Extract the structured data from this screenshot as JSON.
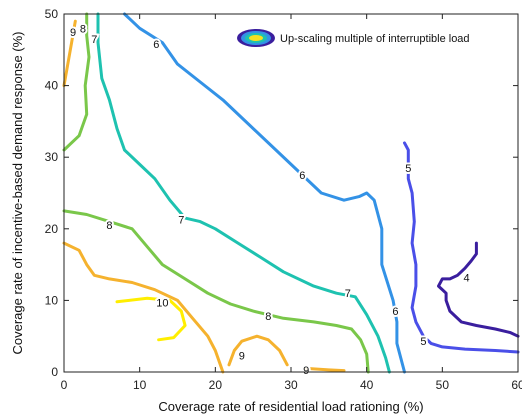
{
  "chart_data": {
    "type": "contour",
    "title": "",
    "xlabel": "Coverage rate of residential load rationing (%)",
    "ylabel": "Coverage rate of incentive-based demand response (%)",
    "xlim": [
      0,
      60
    ],
    "ylim": [
      0,
      50
    ],
    "xticks": [
      "0",
      "10",
      "20",
      "30",
      "40",
      "50",
      "60"
    ],
    "yticks": [
      "0",
      "10",
      "20",
      "30",
      "40",
      "50"
    ],
    "grid": false,
    "legend": {
      "position": "top-right",
      "label": "Up-scaling multiple of interruptible load"
    },
    "levels": [
      {
        "level": 4,
        "label": "4",
        "color": "#3a1e9e",
        "paths": [
          [
            [
              54.5,
              18
            ],
            [
              54.5,
              16.5
            ],
            [
              53.8,
              15.5
            ],
            [
              53,
              14.5
            ],
            [
              52,
              13.5
            ],
            [
              51,
              13
            ],
            [
              50,
              13
            ],
            [
              49.5,
              12
            ],
            [
              50.5,
              11
            ],
            [
              50.5,
              10
            ],
            [
              51,
              8.5
            ],
            [
              52.5,
              7
            ],
            [
              54.5,
              6.5
            ],
            [
              57,
              6
            ],
            [
              59,
              5.5
            ],
            [
              60,
              5
            ]
          ]
        ],
        "labels": [
          [
            53.2,
            13.2
          ]
        ]
      },
      {
        "level": 5,
        "label": "5",
        "color": "#4a4fe8",
        "paths": [
          [
            [
              45,
              32
            ],
            [
              45.5,
              31
            ],
            [
              45.5,
              27
            ],
            [
              46,
              25
            ],
            [
              46.3,
              21
            ],
            [
              46,
              18
            ],
            [
              46.5,
              15
            ],
            [
              46.5,
              12
            ],
            [
              46,
              9
            ],
            [
              46.5,
              7
            ],
            [
              47.5,
              5
            ],
            [
              48.5,
              4
            ],
            [
              50,
              3.5
            ],
            [
              53,
              3.2
            ],
            [
              57,
              3
            ],
            [
              60,
              2.8
            ]
          ]
        ],
        "labels": [
          [
            45.5,
            28.5
          ],
          [
            47.5,
            4.3
          ]
        ]
      },
      {
        "level": 6,
        "label": "6",
        "color": "#3392e6",
        "paths": [
          [
            [
              8,
              50
            ],
            [
              10,
              48
            ],
            [
              13,
              46
            ],
            [
              15,
              43
            ],
            [
              18,
              40.5
            ],
            [
              21,
              38
            ],
            [
              24,
              35
            ],
            [
              28,
              31
            ],
            [
              31,
              28
            ],
            [
              34,
              25
            ],
            [
              37,
              24
            ],
            [
              39,
              24.5
            ],
            [
              40,
              25
            ],
            [
              41,
              24
            ],
            [
              42,
              20
            ],
            [
              42,
              15
            ],
            [
              43.5,
              10
            ],
            [
              44,
              7
            ],
            [
              44,
              4
            ],
            [
              45,
              0
            ]
          ]
        ],
        "labels": [
          [
            12.2,
            45.8
          ],
          [
            31.5,
            27.5
          ],
          [
            43.8,
            8.5
          ]
        ]
      },
      {
        "level": 7,
        "label": "7",
        "color": "#1ec2b0",
        "paths": [
          [
            [
              4.5,
              50
            ],
            [
              4.5,
              46
            ],
            [
              5,
              41
            ],
            [
              6,
              38
            ],
            [
              7,
              34
            ],
            [
              8,
              31
            ],
            [
              10,
              29
            ],
            [
              12,
              27
            ],
            [
              14,
              24
            ],
            [
              16,
              21.5
            ],
            [
              18,
              21
            ],
            [
              20,
              20
            ],
            [
              23,
              18
            ],
            [
              26,
              16
            ],
            [
              29,
              14
            ],
            [
              33,
              12
            ],
            [
              36,
              11
            ],
            [
              38.5,
              10.5
            ],
            [
              40,
              8
            ],
            [
              41.5,
              5
            ],
            [
              42.5,
              2
            ],
            [
              43,
              0
            ]
          ]
        ],
        "labels": [
          [
            4,
            46.5
          ],
          [
            15.5,
            21.3
          ],
          [
            37.5,
            11
          ]
        ]
      },
      {
        "level": 8,
        "label": "8",
        "color": "#7ac74a",
        "paths": [
          [
            [
              0,
              31
            ],
            [
              2,
              33
            ],
            [
              3,
              36
            ],
            [
              2.8,
              40
            ],
            [
              3.3,
              44
            ],
            [
              3,
              47
            ],
            [
              3,
              50
            ]
          ],
          [
            [
              0,
              22.5
            ],
            [
              3,
              22
            ],
            [
              6,
              21
            ],
            [
              9,
              20
            ],
            [
              11,
              17.5
            ],
            [
              13,
              15
            ],
            [
              16,
              13
            ],
            [
              19,
              11
            ],
            [
              22,
              9.5
            ],
            [
              25,
              8.5
            ],
            [
              29,
              7.5
            ],
            [
              33,
              7
            ],
            [
              36,
              6.5
            ],
            [
              38,
              6
            ],
            [
              39.2,
              4.5
            ],
            [
              40,
              2.5
            ],
            [
              40.2,
              0
            ]
          ]
        ],
        "labels": [
          [
            2.5,
            48
          ],
          [
            6,
            20.5
          ],
          [
            27,
            7.8
          ]
        ]
      },
      {
        "level": 9,
        "label": "9",
        "color": "#f5b22e",
        "paths": [
          [
            [
              0,
              18
            ],
            [
              2,
              17
            ],
            [
              3,
              15
            ],
            [
              4,
              13.5
            ],
            [
              6,
              13
            ],
            [
              9,
              12.5
            ],
            [
              12,
              11.5
            ],
            [
              15,
              10
            ],
            [
              17,
              7.5
            ],
            [
              19,
              5
            ],
            [
              20,
              3
            ],
            [
              21,
              0
            ]
          ],
          [
            [
              0,
              40
            ],
            [
              0.5,
              43
            ],
            [
              1,
              46
            ],
            [
              1.5,
              49
            ]
          ],
          [
            [
              21.8,
              1
            ],
            [
              22.5,
              3
            ],
            [
              23.5,
              4.3
            ],
            [
              25.5,
              5
            ],
            [
              27,
              4.5
            ],
            [
              28.5,
              3
            ],
            [
              29.5,
              1
            ]
          ],
          [
            [
              32,
              0.5
            ],
            [
              35,
              0.3
            ],
            [
              37,
              0.2
            ]
          ]
        ],
        "labels": [
          [
            1.2,
            47.5
          ],
          [
            23.5,
            2.3
          ],
          [
            32,
            0.3
          ]
        ]
      },
      {
        "level": 10,
        "label": "10",
        "color": "#ffee00",
        "paths": [
          [
            [
              7,
              9.8
            ],
            [
              11,
              10.3
            ],
            [
              14,
              10
            ],
            [
              15.5,
              8.5
            ],
            [
              16,
              6.5
            ],
            [
              14.5,
              4.8
            ],
            [
              12.5,
              4.5
            ]
          ]
        ],
        "labels": [
          [
            13,
            9.7
          ]
        ]
      }
    ]
  }
}
